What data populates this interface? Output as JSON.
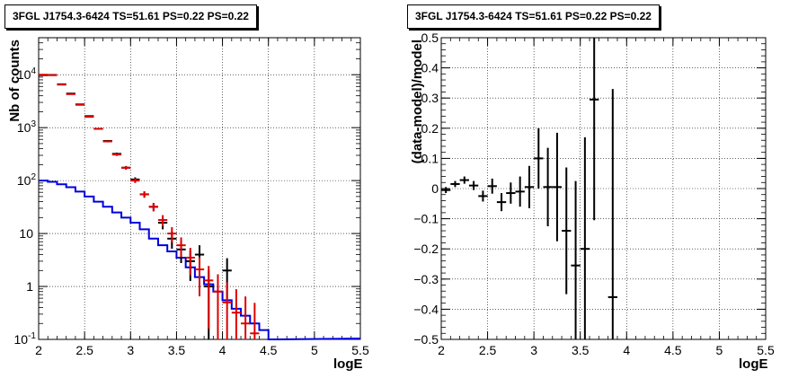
{
  "chart_data": [
    {
      "type": "scatter",
      "title": "3FGL J1754.3-6424 TS=51.61 PS=0.22 PS=0.22",
      "xlabel": "logE",
      "ylabel": "Nb of counts",
      "xlim": [
        2,
        5.5
      ],
      "ylim": [
        0.1,
        50000
      ],
      "yscale": "log",
      "grid": true,
      "x_ticks": [
        "2",
        "2.5",
        "3",
        "3.5",
        "4",
        "4.5",
        "5",
        "5.5"
      ],
      "y_ticks": [
        "10^-1",
        "1",
        "10",
        "10^2",
        "10^3",
        "10^4"
      ],
      "series": [
        {
          "style": "points-with-errors",
          "color": "#000000",
          "points": [
            {
              "x": 2.05,
              "y": 9800
            },
            {
              "x": 2.15,
              "y": 9900
            },
            {
              "x": 2.25,
              "y": 6600
            },
            {
              "x": 2.35,
              "y": 4400
            },
            {
              "x": 2.45,
              "y": 2750
            },
            {
              "x": 2.55,
              "y": 1650
            },
            {
              "x": 2.65,
              "y": 950
            },
            {
              "x": 2.75,
              "y": 560
            },
            {
              "x": 2.85,
              "y": 320
            },
            {
              "x": 2.95,
              "y": 175
            },
            {
              "x": 3.05,
              "y": 105
            },
            {
              "x": 3.15,
              "y": 55
            },
            {
              "x": 3.25,
              "y": 32
            },
            {
              "x": 3.35,
              "y": 16
            },
            {
              "x": 3.45,
              "y": 8
            },
            {
              "x": 3.55,
              "y": 5
            },
            {
              "x": 3.65,
              "y": 3
            },
            {
              "x": 3.75,
              "y": 4
            },
            {
              "x": 3.85,
              "y": 1
            },
            {
              "x": 4.05,
              "y": 2
            }
          ]
        },
        {
          "style": "points-with-errors",
          "color": "#dd0000",
          "points": [
            {
              "x": 2.05,
              "y": 10000
            },
            {
              "x": 2.15,
              "y": 9800
            },
            {
              "x": 2.25,
              "y": 6500
            },
            {
              "x": 2.35,
              "y": 4300
            },
            {
              "x": 2.45,
              "y": 2700
            },
            {
              "x": 2.55,
              "y": 1600
            },
            {
              "x": 2.65,
              "y": 950
            },
            {
              "x": 2.75,
              "y": 550
            },
            {
              "x": 2.85,
              "y": 310
            },
            {
              "x": 2.95,
              "y": 175
            },
            {
              "x": 3.05,
              "y": 100
            },
            {
              "x": 3.15,
              "y": 55
            },
            {
              "x": 3.25,
              "y": 32
            },
            {
              "x": 3.35,
              "y": 18
            },
            {
              "x": 3.45,
              "y": 10
            },
            {
              "x": 3.55,
              "y": 6
            },
            {
              "x": 3.65,
              "y": 3.5
            },
            {
              "x": 3.75,
              "y": 2.1
            },
            {
              "x": 3.85,
              "y": 1.3
            },
            {
              "x": 3.95,
              "y": 0.8
            },
            {
              "x": 4.05,
              "y": 0.5
            },
            {
              "x": 4.15,
              "y": 0.32
            },
            {
              "x": 4.25,
              "y": 0.2
            },
            {
              "x": 4.35,
              "y": 0.13
            }
          ]
        },
        {
          "style": "histogram",
          "color": "#0000dd",
          "bin_width": 0.1,
          "bin_starts": [
            2.0,
            2.1,
            2.2,
            2.3,
            2.4,
            2.5,
            2.6,
            2.7,
            2.8,
            2.9,
            3.0,
            3.1,
            3.2,
            3.3,
            3.4,
            3.5,
            3.6,
            3.7,
            3.8,
            3.9,
            4.0,
            4.1,
            4.2,
            4.3,
            4.4,
            4.5
          ],
          "values": [
            100,
            95,
            85,
            75,
            62,
            50,
            40,
            32,
            25,
            20,
            16,
            12,
            8,
            6,
            4.6,
            3.5,
            2.3,
            1.5,
            1.1,
            0.8,
            0.55,
            0.38,
            0.28,
            0.2,
            0.15,
            0.1
          ]
        }
      ]
    },
    {
      "type": "scatter",
      "title": "3FGL J1754.3-6424 TS=51.61 PS=0.22 PS=0.22",
      "xlabel": "logE",
      "ylabel": "(data-model)/model",
      "xlim": [
        2,
        5.5
      ],
      "ylim": [
        -0.5,
        0.5
      ],
      "grid": true,
      "x_ticks": [
        "2",
        "2.5",
        "3",
        "3.5",
        "4",
        "4.5",
        "5",
        "5.5"
      ],
      "y_ticks": [
        "−0.5",
        "−0.4",
        "−0.3",
        "−0.2",
        "−0.1",
        "0",
        "0.1",
        "0.2",
        "0.3",
        "0.4",
        "0.5"
      ],
      "series": [
        {
          "style": "points-with-errors",
          "color": "#000000",
          "points": [
            {
              "x": 2.05,
              "y": -0.005,
              "err": 0.01
            },
            {
              "x": 2.15,
              "y": 0.015,
              "err": 0.01
            },
            {
              "x": 2.25,
              "y": 0.028,
              "err": 0.012
            },
            {
              "x": 2.35,
              "y": 0.01,
              "err": 0.015
            },
            {
              "x": 2.45,
              "y": -0.025,
              "err": 0.018
            },
            {
              "x": 2.55,
              "y": 0.008,
              "err": 0.025
            },
            {
              "x": 2.65,
              "y": -0.045,
              "err": 0.03
            },
            {
              "x": 2.75,
              "y": -0.015,
              "err": 0.035
            },
            {
              "x": 2.85,
              "y": -0.01,
              "err": 0.05
            },
            {
              "x": 2.95,
              "y": 0.005,
              "err": 0.07
            },
            {
              "x": 3.05,
              "y": 0.1,
              "err": 0.1
            },
            {
              "x": 3.15,
              "y": 0.005,
              "err": 0.13
            },
            {
              "x": 3.25,
              "y": 0.005,
              "err": 0.18
            },
            {
              "x": 3.35,
              "y": -0.14,
              "err": 0.21
            },
            {
              "x": 3.45,
              "y": -0.255,
              "err": 0.28
            },
            {
              "x": 3.55,
              "y": -0.2,
              "err": 0.37
            },
            {
              "x": 3.65,
              "y": 0.295,
              "err": 0.4
            },
            {
              "x": 3.85,
              "y": -0.36,
              "err": 0.69
            }
          ]
        }
      ]
    }
  ]
}
